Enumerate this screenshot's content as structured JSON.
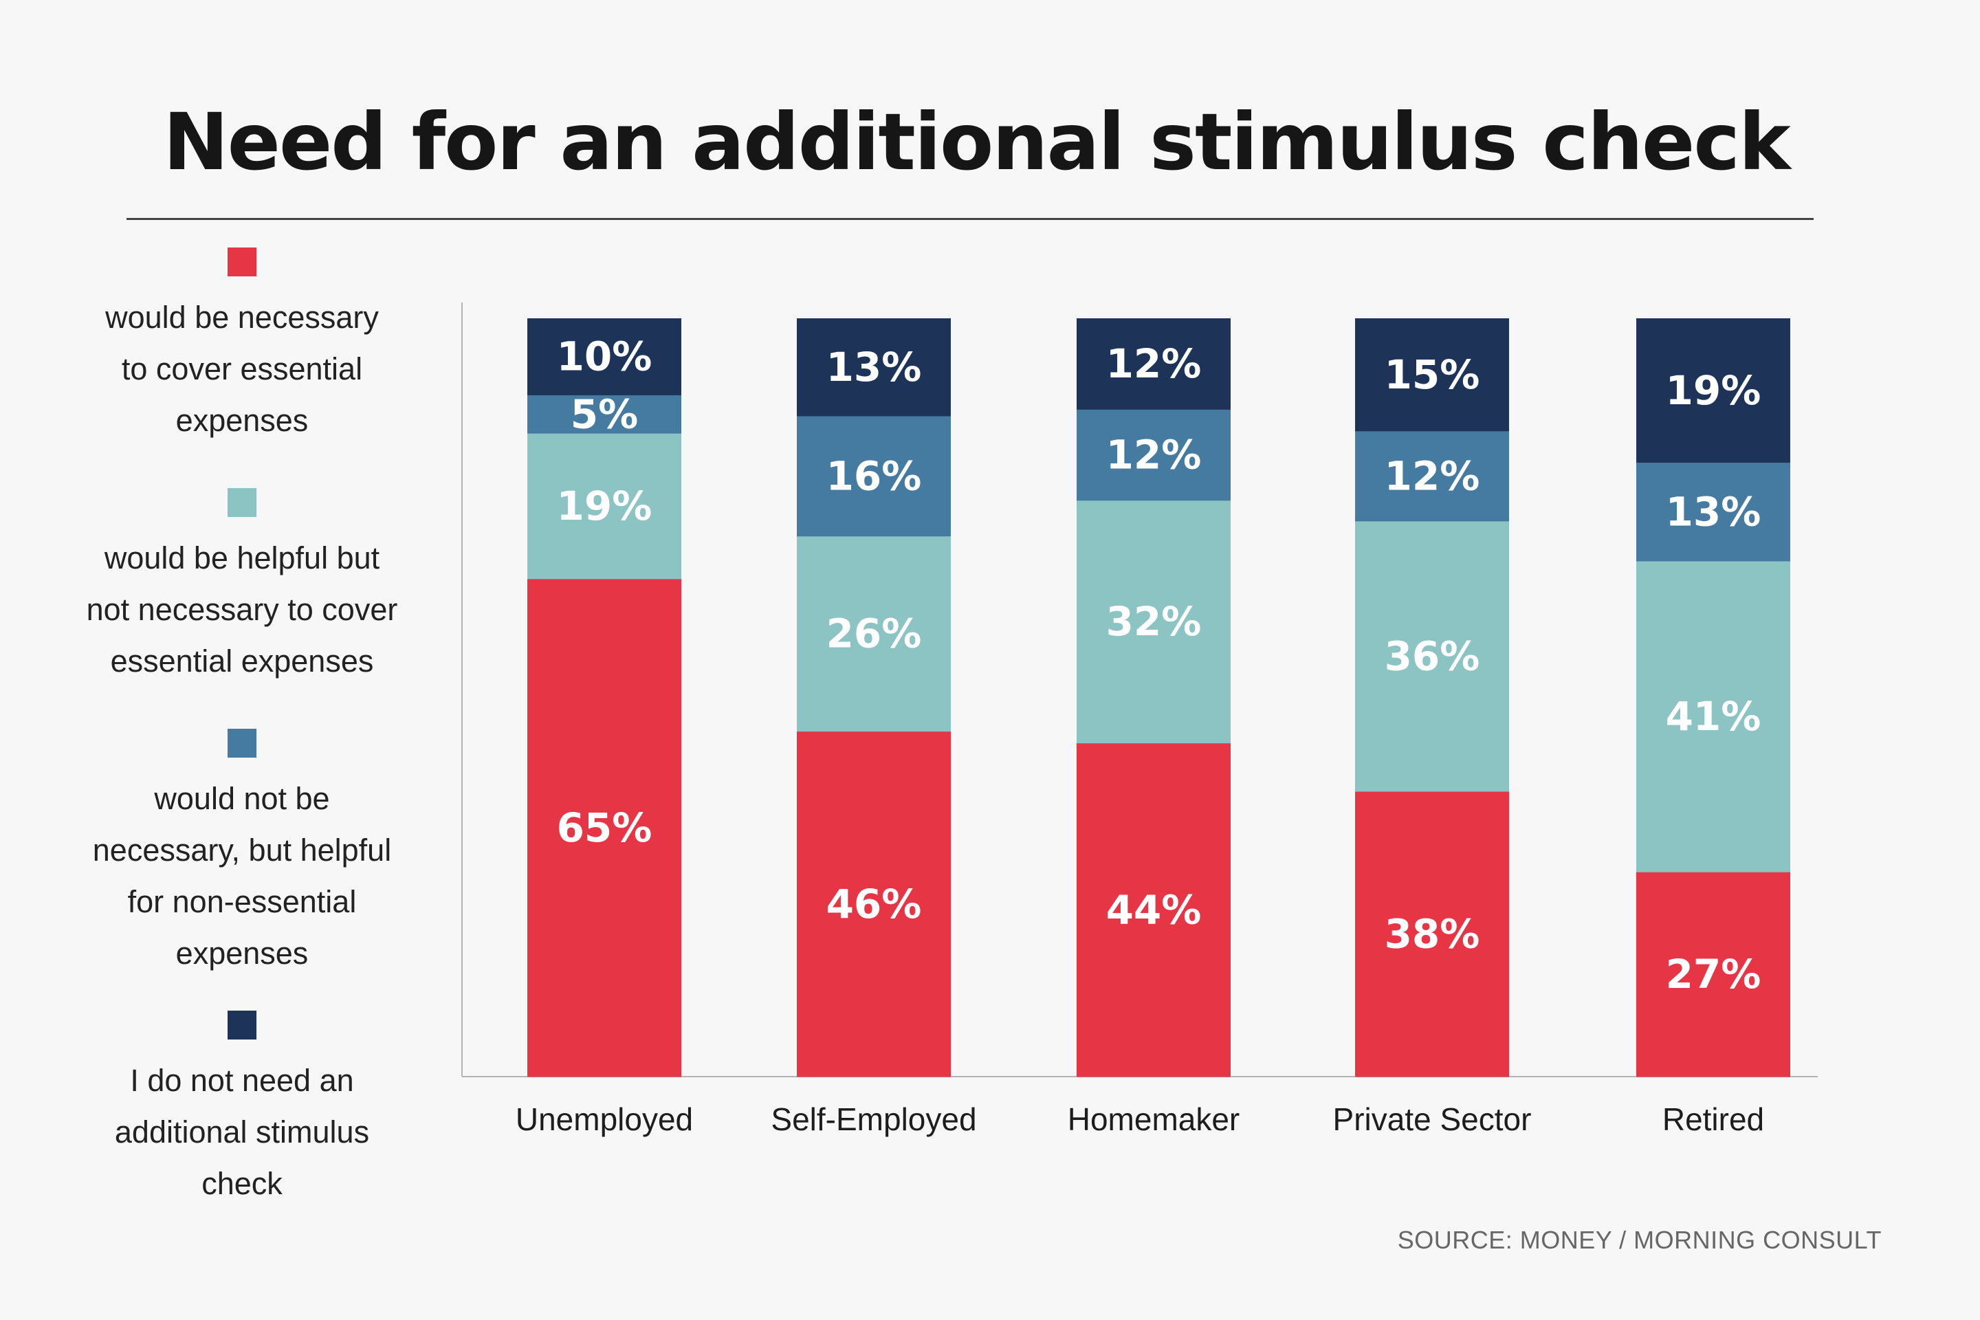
{
  "title": "Need for an additional stimulus check",
  "source": "SOURCE: MONEY / MORNING CONSULT",
  "colors": {
    "necessary": "#e63646",
    "helpful_not_necessary": "#8cc4c4",
    "not_necessary_helpful_nonessential": "#457ba0",
    "do_not_need": "#1d3458",
    "axis": "#b3b3b3"
  },
  "legend": [
    {
      "label_lines": [
        "would be necessary",
        "to cover essential",
        "expenses"
      ],
      "color": "#e63646"
    },
    {
      "label_lines": [
        "would be helpful but",
        "not necessary to cover",
        "essential expenses"
      ],
      "color": "#8cc4c4"
    },
    {
      "label_lines": [
        "would not be",
        "necessary, but helpful",
        "for non-essential",
        "expenses"
      ],
      "color": "#457ba0"
    },
    {
      "label_lines": [
        "I do not need an",
        "additional stimulus",
        "check"
      ],
      "color": "#1d3458"
    }
  ],
  "chart_data": {
    "type": "bar",
    "stacked": true,
    "title": "Need for an additional stimulus check",
    "categories": [
      "Unemployed",
      "Self-Employed",
      "Homemaker",
      "Private Sector",
      "Retired"
    ],
    "series": [
      {
        "name": "would be necessary to cover essential expenses",
        "color": "#e63646",
        "values": [
          65,
          46,
          44,
          38,
          27
        ]
      },
      {
        "name": "would be helpful but not necessary to cover essential expenses",
        "color": "#8cc4c4",
        "values": [
          19,
          26,
          32,
          36,
          41
        ]
      },
      {
        "name": "would not be necessary, but helpful for non-essential expenses",
        "color": "#457ba0",
        "values": [
          5,
          16,
          12,
          12,
          13
        ]
      },
      {
        "name": "I do not need an additional stimulus check",
        "color": "#1d3458",
        "values": [
          10,
          13,
          12,
          15,
          19
        ]
      }
    ],
    "value_suffix": "%",
    "legend_position": "left",
    "grid": false
  }
}
